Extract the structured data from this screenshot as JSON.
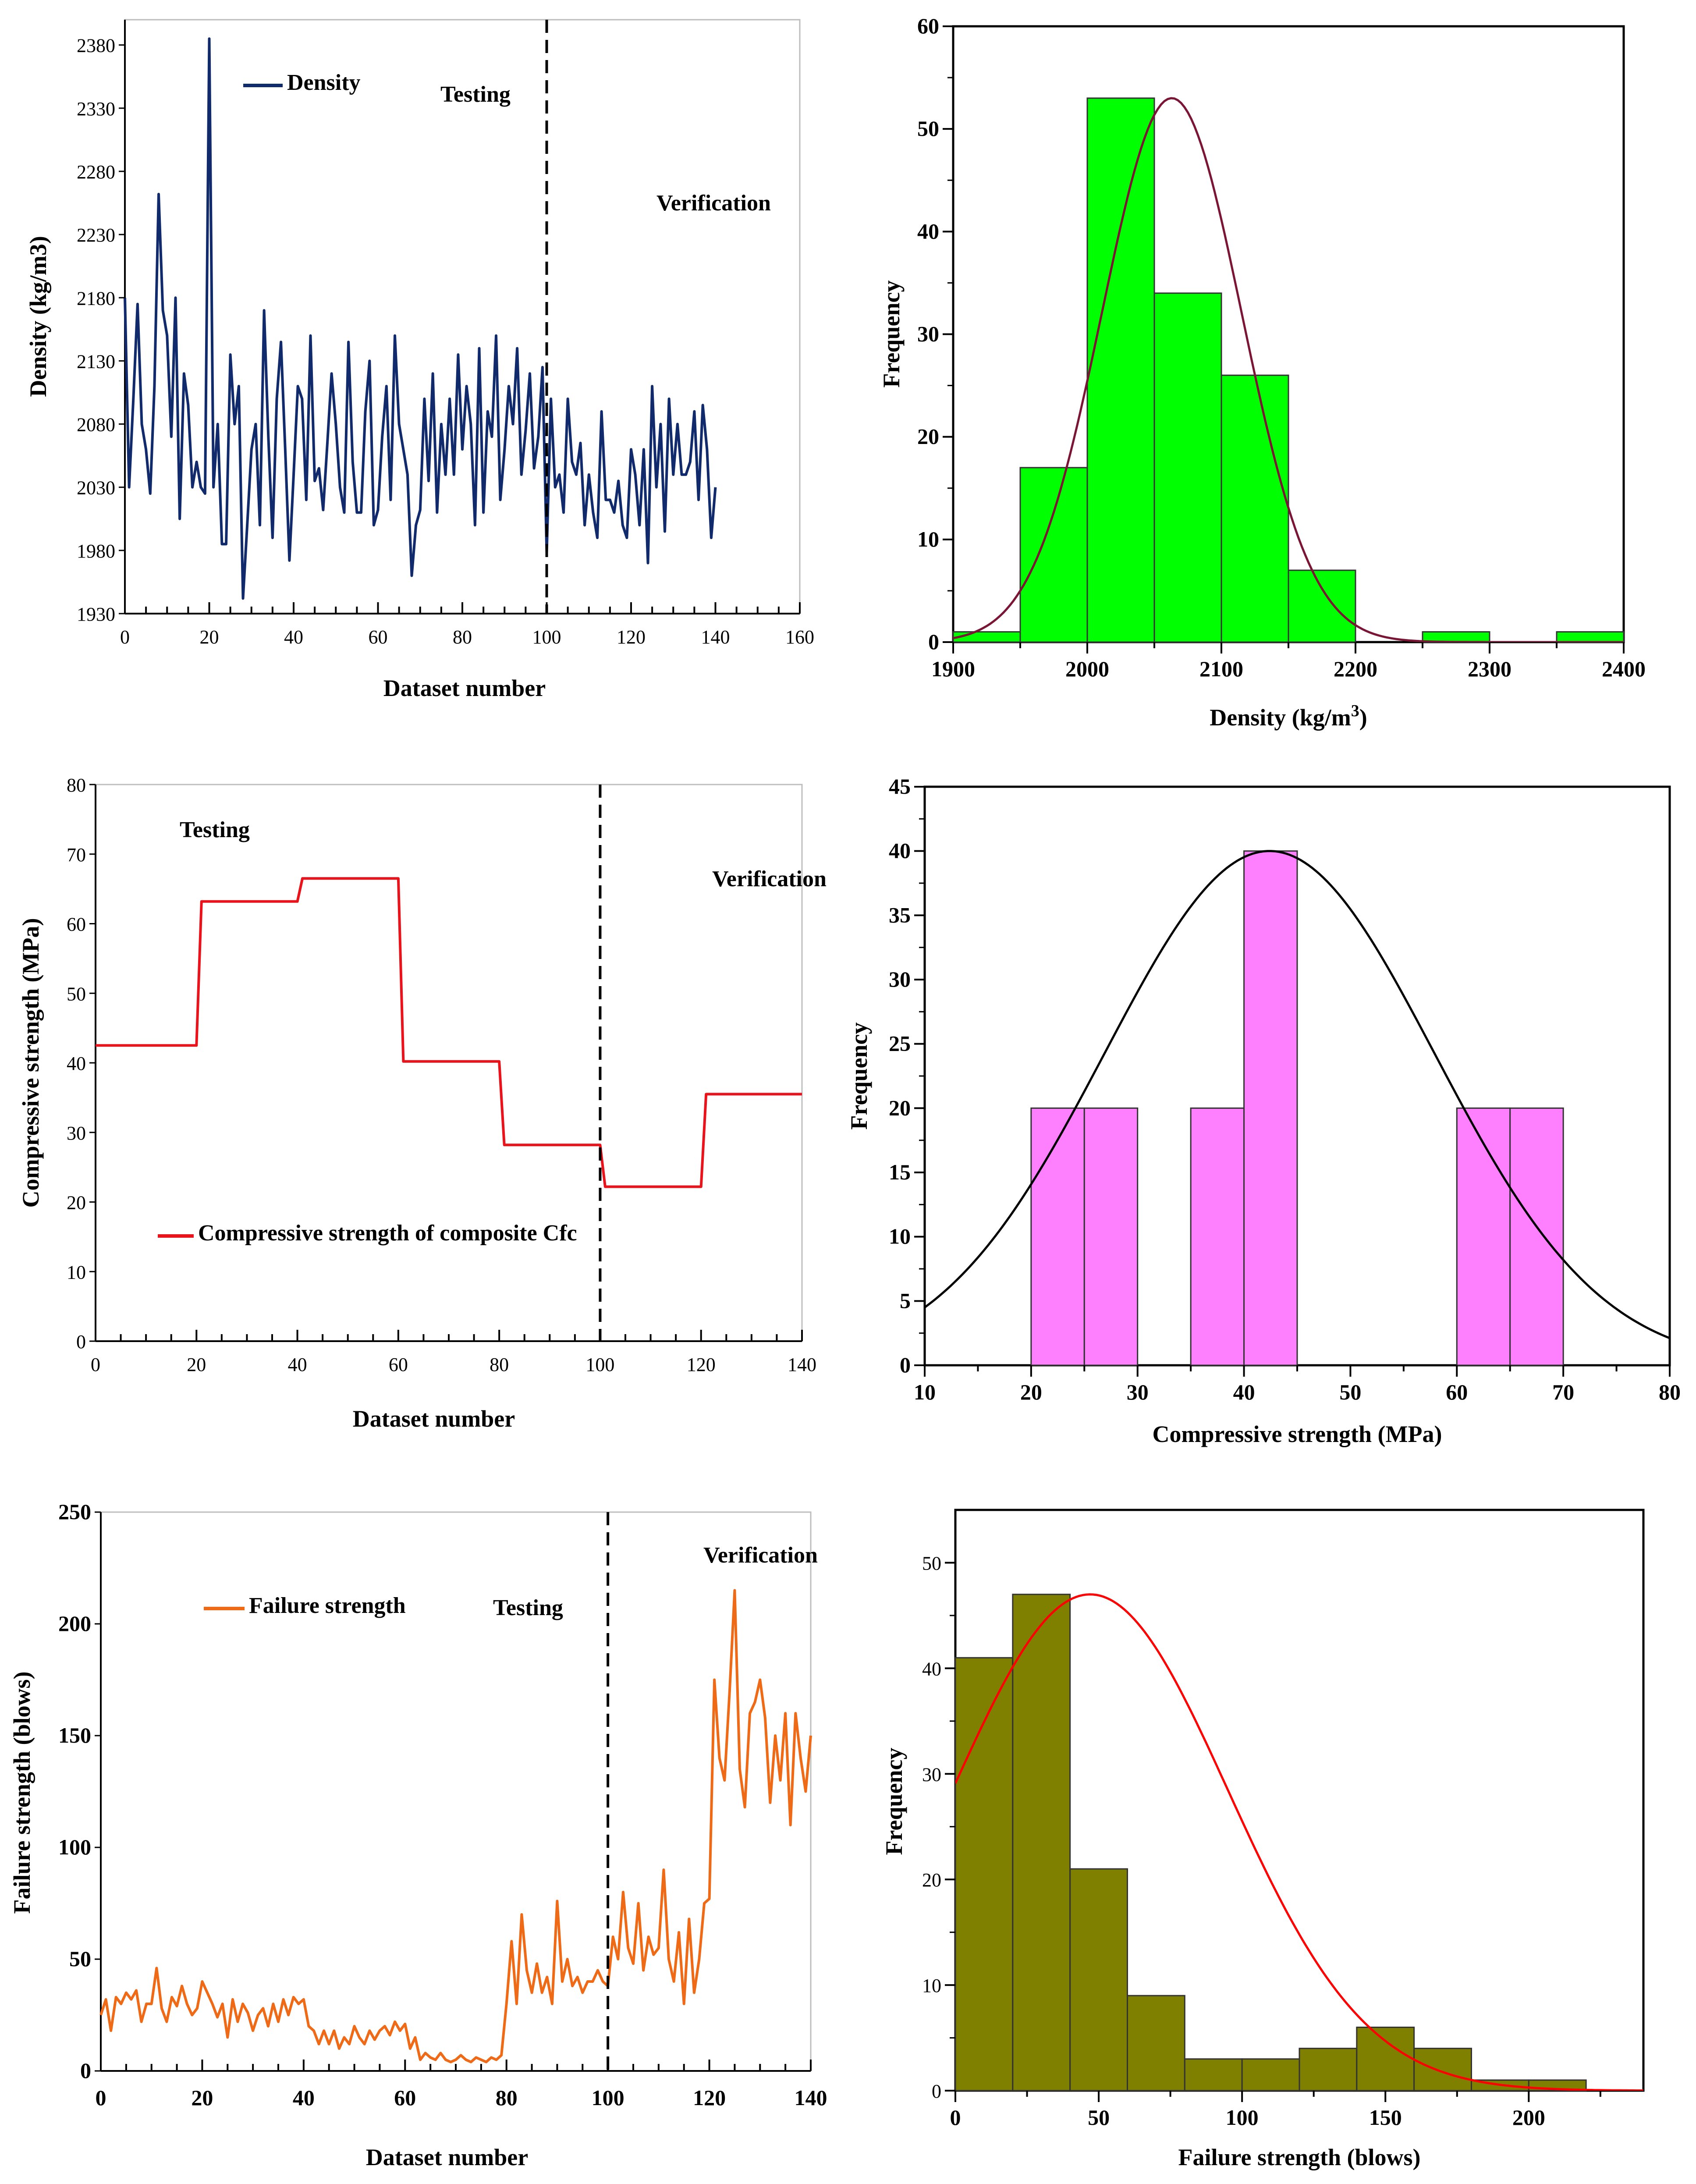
{
  "chart_data": [
    {
      "type": "line",
      "xlabel": "Dataset number",
      "ylabel": "Density (kg/m3)",
      "xlim": [
        0,
        160
      ],
      "ylim": [
        1930,
        2400
      ],
      "xticks": [
        0,
        20,
        40,
        60,
        80,
        100,
        120,
        140,
        160
      ],
      "yticks": [
        1930,
        1980,
        2030,
        2080,
        2130,
        2180,
        2230,
        2280,
        2330,
        2380
      ],
      "legend": "Density",
      "annotations": [
        "Testing",
        "Verification"
      ],
      "divider_x": 100,
      "series": [
        {
          "name": "Density",
          "color": "#102a6b",
          "values": [
            2180,
            2030,
            2100,
            2175,
            2080,
            2060,
            2025,
            2110,
            2262,
            2170,
            2150,
            2070,
            2180,
            2005,
            2120,
            2095,
            2030,
            2050,
            2030,
            2025,
            2385,
            2030,
            2080,
            1985,
            1985,
            2135,
            2080,
            2110,
            1942,
            2000,
            2060,
            2080,
            2000,
            2170,
            2070,
            1990,
            2100,
            2145,
            2060,
            1972,
            2040,
            2110,
            2100,
            2020,
            2150,
            2035,
            2045,
            2012,
            2065,
            2120,
            2080,
            2030,
            2010,
            2145,
            2050,
            2010,
            2010,
            2090,
            2130,
            2000,
            2012,
            2070,
            2110,
            2020,
            2150,
            2080,
            2060,
            2040,
            1960,
            2000,
            2012,
            2100,
            2035,
            2120,
            2010,
            2080,
            2040,
            2100,
            2040,
            2135,
            2060,
            2110,
            2080,
            2000,
            2140,
            2010,
            2090,
            2070,
            2150,
            2020,
            2060,
            2110,
            2080,
            2140,
            2040,
            2075,
            2120,
            2045,
            2070,
            2125,
            1978,
            2100,
            2030,
            2040,
            2010,
            2100,
            2050,
            2040,
            2065,
            2000,
            2040,
            2010,
            1990,
            2090,
            2020,
            2020,
            2010,
            2035,
            2000,
            1990,
            2060,
            2040,
            2000,
            2060,
            1970,
            2110,
            2030,
            2080,
            1995,
            2100,
            2040,
            2080,
            2040,
            2040,
            2050,
            2090,
            2020,
            2095,
            2060,
            1990,
            2030
          ]
        }
      ]
    },
    {
      "type": "bar",
      "xlabel": "Density (kg/m3)",
      "ylabel": "Frequency",
      "xlim": [
        1900,
        2400
      ],
      "ylim": [
        0,
        60
      ],
      "xticks": [
        1900,
        2000,
        2100,
        2200,
        2300,
        2400
      ],
      "yticks": [
        0,
        10,
        20,
        30,
        40,
        50,
        60
      ],
      "bin_width": 50,
      "bins": [
        1900,
        1950,
        2000,
        2050,
        2100,
        2150,
        2200,
        2250,
        2300,
        2350
      ],
      "values": [
        1,
        17,
        53,
        34,
        26,
        7,
        0,
        1,
        0,
        1
      ],
      "bar_color": "#00ff00",
      "curve": {
        "type": "normal",
        "mean": 2063,
        "sd": 52,
        "peak": 53,
        "color": "#7b1535"
      }
    },
    {
      "type": "line",
      "xlabel": "Dataset number",
      "ylabel": "Compressive strength (MPa)",
      "xlim": [
        0,
        140
      ],
      "ylim": [
        0,
        80
      ],
      "xticks": [
        0,
        20,
        40,
        60,
        80,
        100,
        120,
        140
      ],
      "yticks": [
        0,
        10,
        20,
        30,
        40,
        50,
        60,
        70,
        80
      ],
      "legend": "Compressive strength of composite Cfc",
      "annotations": [
        "Testing",
        "Verification"
      ],
      "divider_x": 100,
      "series": [
        {
          "name": "Compressive strength of composite Cfc",
          "color": "#e8131b",
          "steps": [
            [
              0,
              42.5
            ],
            [
              20,
              42.5
            ],
            [
              21,
              63.2
            ],
            [
              40,
              63.2
            ],
            [
              41,
              66.5
            ],
            [
              60,
              66.5
            ],
            [
              61,
              40.2
            ],
            [
              80,
              40.2
            ],
            [
              81,
              28.2
            ],
            [
              100,
              28.2
            ],
            [
              101,
              22.2
            ],
            [
              120,
              22.2
            ],
            [
              121,
              35.5
            ],
            [
              140,
              35.5
            ]
          ]
        }
      ]
    },
    {
      "type": "bar",
      "xlabel": "Compressive strength (MPa)",
      "ylabel": "Frequency",
      "xlim": [
        10,
        80
      ],
      "ylim": [
        0,
        45
      ],
      "xticks": [
        10,
        20,
        30,
        40,
        50,
        60,
        70,
        80
      ],
      "yticks": [
        0,
        5,
        10,
        15,
        20,
        25,
        30,
        35,
        40,
        45
      ],
      "bin_width": 5,
      "bins": [
        20,
        25,
        35,
        40,
        60,
        65
      ],
      "values": [
        20,
        20,
        20,
        40,
        20,
        20
      ],
      "bar_color": "#ff80ff",
      "curve": {
        "type": "normal",
        "mean": 42.4,
        "sd": 15.5,
        "peak": 40,
        "color": "#000000"
      }
    },
    {
      "type": "line",
      "xlabel": "Dataset number",
      "ylabel": "Failure strength (blows)",
      "xlim": [
        0,
        140
      ],
      "ylim": [
        0,
        250
      ],
      "xticks": [
        0,
        20,
        40,
        60,
        80,
        100,
        120,
        140
      ],
      "yticks": [
        0,
        50,
        100,
        150,
        200,
        250
      ],
      "legend": "Failure strength",
      "annotations": [
        "Testing",
        "Verification"
      ],
      "divider_x": 100,
      "series": [
        {
          "name": "Failure strength",
          "color": "#ee6a16",
          "values": [
            25,
            32,
            18,
            33,
            30,
            35,
            32,
            36,
            22,
            30,
            30,
            46,
            28,
            22,
            33,
            29,
            38,
            30,
            25,
            28,
            40,
            35,
            30,
            24,
            30,
            15,
            32,
            22,
            30,
            26,
            18,
            25,
            28,
            20,
            30,
            22,
            32,
            25,
            33,
            30,
            32,
            20,
            18,
            12,
            18,
            12,
            18,
            10,
            15,
            12,
            20,
            15,
            12,
            18,
            14,
            18,
            20,
            16,
            22,
            18,
            21,
            10,
            15,
            5,
            8,
            6,
            5,
            8,
            5,
            4,
            5,
            7,
            5,
            4,
            6,
            5,
            4,
            6,
            5,
            7,
            30,
            58,
            30,
            70,
            45,
            35,
            48,
            35,
            42,
            30,
            76,
            40,
            50,
            38,
            42,
            35,
            40,
            40,
            45,
            40,
            38,
            60,
            50,
            80,
            55,
            48,
            75,
            45,
            60,
            52,
            55,
            90,
            50,
            40,
            62,
            30,
            68,
            35,
            50,
            75,
            77,
            175,
            140,
            130,
            170,
            215,
            135,
            118,
            160,
            165,
            175,
            158,
            120,
            150,
            130,
            160,
            110,
            160,
            140,
            125,
            150
          ]
        }
      ]
    },
    {
      "type": "bar",
      "xlabel": "Failure strength (blows)",
      "ylabel": "Frequency",
      "xlim": [
        0,
        240
      ],
      "ylim": [
        0,
        55
      ],
      "xticks": [
        0,
        50,
        100,
        150,
        200
      ],
      "yticks": [
        0,
        10,
        20,
        30,
        40,
        50
      ],
      "bin_width": 20,
      "bins": [
        0,
        20,
        40,
        60,
        80,
        100,
        120,
        140,
        160,
        180,
        200
      ],
      "values": [
        41,
        47,
        21,
        9,
        3,
        3,
        4,
        6,
        4,
        1,
        1
      ],
      "bar_color": "#808000",
      "curve": {
        "type": "normal",
        "mean": 47,
        "sd": 48,
        "peak": 47,
        "color": "#ff0000"
      }
    }
  ]
}
